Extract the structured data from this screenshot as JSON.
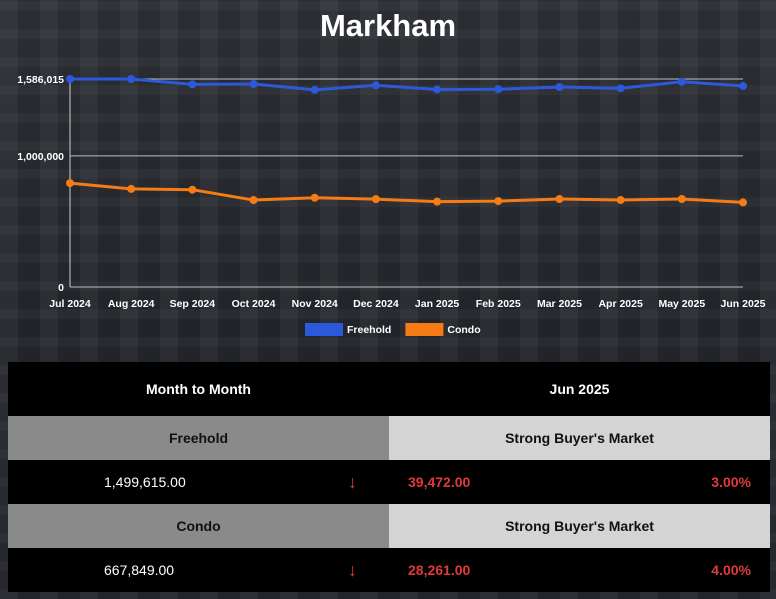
{
  "title": "Markham",
  "chart_data": {
    "type": "line",
    "categories": [
      "Jul 2024",
      "Aug 2024",
      "Sep 2024",
      "Oct 2024",
      "Nov 2024",
      "Dec 2024",
      "Jan 2025",
      "Feb 2025",
      "Mar 2025",
      "Apr 2025",
      "May 2025",
      "Jun 2025"
    ],
    "series": [
      {
        "name": "Freehold",
        "color": "#2b59d9",
        "values": [
          1586015,
          1586015,
          1545000,
          1548000,
          1503000,
          1538000,
          1506000,
          1508000,
          1525000,
          1515000,
          1565000,
          1533000
        ]
      },
      {
        "name": "Condo",
        "color": "#f57c14",
        "values": [
          792000,
          748000,
          742000,
          663000,
          681000,
          670000,
          651000,
          655000,
          671000,
          663000,
          671000,
          645000
        ]
      }
    ],
    "yticks": [
      {
        "value": 0,
        "label": "0"
      },
      {
        "value": 1000000,
        "label": "1,000,000"
      },
      {
        "value": 1586015,
        "label": "1,586,015"
      }
    ],
    "ylim": [
      0,
      1586015
    ],
    "grid": true,
    "legend": "bottom"
  },
  "table": {
    "header_left": "Month to Month",
    "header_right": "Jun 2025",
    "rows": [
      {
        "type": "Freehold",
        "market": "Strong Buyer's Market",
        "price": "1,499,615.00",
        "arrow": "↓",
        "change": "39,472.00",
        "percent": "3.00%"
      },
      {
        "type": "Condo",
        "market": "Strong Buyer's Market",
        "price": "667,849.00",
        "arrow": "↓",
        "change": "28,261.00",
        "percent": "4.00%"
      }
    ]
  }
}
